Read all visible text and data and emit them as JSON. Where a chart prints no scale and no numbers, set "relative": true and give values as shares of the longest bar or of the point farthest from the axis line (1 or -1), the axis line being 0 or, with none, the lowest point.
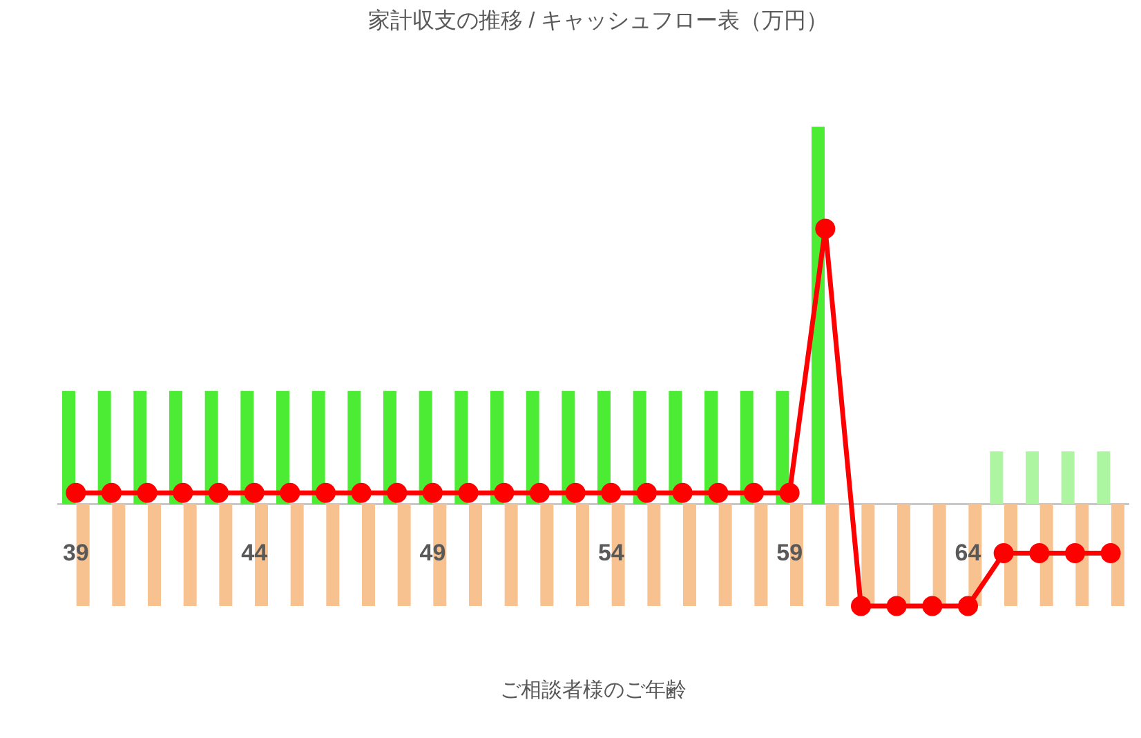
{
  "chart_data": {
    "type": "bar",
    "title": "家計収支の推移 / キャッシュフロー表（万円）",
    "xlabel": "ご相談者様のご年齢",
    "categories": [
      "39",
      null,
      null,
      null,
      null,
      "44",
      null,
      null,
      null,
      null,
      "49",
      null,
      null,
      null,
      null,
      "54",
      null,
      null,
      null,
      null,
      "59",
      null,
      null,
      null,
      null,
      "64",
      null,
      null,
      null,
      null
    ],
    "relative": true,
    "legend": false,
    "marker": "circle",
    "series": [
      {
        "colors": [
          "#4cec34",
          "#4cec34",
          "#4cec34",
          "#4cec34",
          "#4cec34",
          "#4cec34",
          "#4cec34",
          "#4cec34",
          "#4cec34",
          "#4cec34",
          "#4cec34",
          "#4cec34",
          "#4cec34",
          "#4cec34",
          "#4cec34",
          "#4cec34",
          "#4cec34",
          "#4cec34",
          "#4cec34",
          "#4cec34",
          "#4cec34",
          "#4cec34",
          "#4cec34",
          "#4cec34",
          "#4cec34",
          "#4cec34",
          "#adf5a0",
          "#adf5a0",
          "#adf5a0",
          "#adf5a0"
        ],
        "values": [
          0.3,
          0.3,
          0.3,
          0.3,
          0.3,
          0.3,
          0.3,
          0.3,
          0.3,
          0.3,
          0.3,
          0.3,
          0.3,
          0.3,
          0.3,
          0.3,
          0.3,
          0.3,
          0.3,
          0.3,
          0.3,
          1,
          null,
          null,
          null,
          null,
          0.14,
          0.14,
          0.14,
          0.14
        ]
      },
      {
        "color": "#f8c290",
        "values": [
          -0.27,
          -0.27,
          -0.27,
          -0.27,
          -0.27,
          -0.27,
          -0.27,
          -0.27,
          -0.27,
          -0.27,
          -0.27,
          -0.27,
          -0.27,
          -0.27,
          -0.27,
          -0.27,
          -0.27,
          -0.27,
          -0.27,
          -0.27,
          -0.27,
          -0.27,
          -0.27,
          -0.27,
          -0.27,
          -0.27,
          -0.27,
          -0.27,
          -0.27,
          -0.27
        ]
      },
      {
        "type": "line",
        "color": "#ff0000",
        "values": [
          0.03,
          0.03,
          0.03,
          0.03,
          0.03,
          0.03,
          0.03,
          0.03,
          0.03,
          0.03,
          0.03,
          0.03,
          0.03,
          0.03,
          0.03,
          0.03,
          0.03,
          0.03,
          0.03,
          0.03,
          0.03,
          0.73,
          -0.27,
          -0.27,
          -0.27,
          -0.27,
          -0.13,
          -0.13,
          -0.13,
          -0.13
        ]
      }
    ]
  }
}
